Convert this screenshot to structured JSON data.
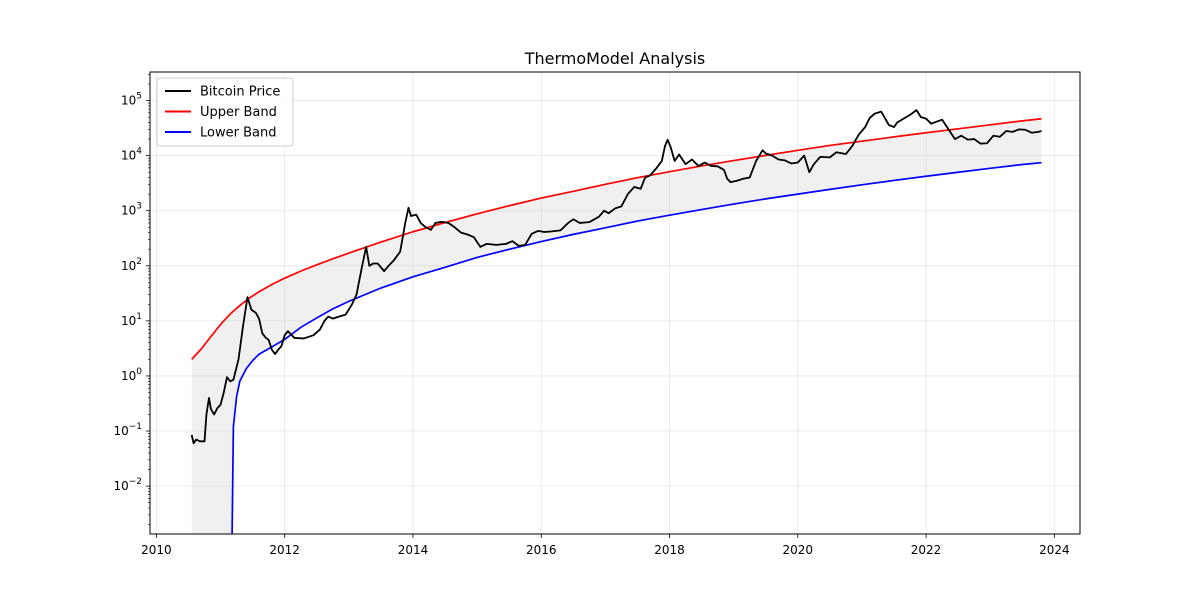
{
  "chart_data": {
    "type": "line",
    "title": "ThermoModel Analysis",
    "xlabel": "",
    "ylabel": "",
    "y_scale": "log",
    "grid": true,
    "legend_position": "top-left",
    "xlim": [
      2009.9,
      2024.4
    ],
    "ylim": [
      0.00135,
      330000
    ],
    "x_ticks": [
      2010,
      2012,
      2014,
      2016,
      2018,
      2020,
      2022,
      2024
    ],
    "x_tick_labels": [
      "2010",
      "2012",
      "2014",
      "2016",
      "2018",
      "2020",
      "2022",
      "2024"
    ],
    "y_ticks": [
      0.01,
      0.1,
      1,
      10,
      100,
      1000,
      10000,
      100000
    ],
    "y_tick_labels": [
      {
        "base": "10",
        "exp": "−2"
      },
      {
        "base": "10",
        "exp": "−1"
      },
      {
        "base": "10",
        "exp": "0"
      },
      {
        "base": "10",
        "exp": "1"
      },
      {
        "base": "10",
        "exp": "2"
      },
      {
        "base": "10",
        "exp": "3"
      },
      {
        "base": "10",
        "exp": "4"
      },
      {
        "base": "10",
        "exp": "5"
      }
    ],
    "band_fill_color": "#f0f0f0",
    "series": [
      {
        "name": "Bitcoin Price",
        "color": "#000000",
        "points": [
          [
            2010.55,
            0.085
          ],
          [
            2010.58,
            0.06
          ],
          [
            2010.62,
            0.07
          ],
          [
            2010.68,
            0.065
          ],
          [
            2010.75,
            0.065
          ],
          [
            2010.78,
            0.2
          ],
          [
            2010.82,
            0.4
          ],
          [
            2010.85,
            0.25
          ],
          [
            2010.9,
            0.2
          ],
          [
            2010.95,
            0.26
          ],
          [
            2011.0,
            0.3
          ],
          [
            2011.05,
            0.5
          ],
          [
            2011.1,
            0.95
          ],
          [
            2011.15,
            0.8
          ],
          [
            2011.2,
            0.85
          ],
          [
            2011.28,
            2
          ],
          [
            2011.35,
            8
          ],
          [
            2011.42,
            27
          ],
          [
            2011.48,
            16
          ],
          [
            2011.55,
            14
          ],
          [
            2011.6,
            11
          ],
          [
            2011.65,
            6
          ],
          [
            2011.7,
            5
          ],
          [
            2011.75,
            4.5
          ],
          [
            2011.8,
            3
          ],
          [
            2011.85,
            2.5
          ],
          [
            2011.9,
            3
          ],
          [
            2011.95,
            3.5
          ],
          [
            2012.0,
            5.5
          ],
          [
            2012.05,
            6.5
          ],
          [
            2012.15,
            4.9
          ],
          [
            2012.3,
            4.8
          ],
          [
            2012.45,
            5.5
          ],
          [
            2012.55,
            7
          ],
          [
            2012.62,
            10
          ],
          [
            2012.68,
            12
          ],
          [
            2012.75,
            11
          ],
          [
            2012.85,
            12
          ],
          [
            2012.95,
            13
          ],
          [
            2013.05,
            20
          ],
          [
            2013.12,
            30
          ],
          [
            2013.2,
            90
          ],
          [
            2013.27,
            220
          ],
          [
            2013.32,
            100
          ],
          [
            2013.38,
            110
          ],
          [
            2013.45,
            110
          ],
          [
            2013.55,
            80
          ],
          [
            2013.62,
            100
          ],
          [
            2013.7,
            125
          ],
          [
            2013.8,
            180
          ],
          [
            2013.88,
            600
          ],
          [
            2013.93,
            1130
          ],
          [
            2013.97,
            800
          ],
          [
            2014.05,
            850
          ],
          [
            2014.12,
            600
          ],
          [
            2014.2,
            500
          ],
          [
            2014.28,
            450
          ],
          [
            2014.35,
            600
          ],
          [
            2014.45,
            630
          ],
          [
            2014.55,
            600
          ],
          [
            2014.65,
            500
          ],
          [
            2014.75,
            400
          ],
          [
            2014.85,
            370
          ],
          [
            2014.95,
            330
          ],
          [
            2015.05,
            220
          ],
          [
            2015.15,
            250
          ],
          [
            2015.3,
            240
          ],
          [
            2015.45,
            250
          ],
          [
            2015.55,
            280
          ],
          [
            2015.65,
            230
          ],
          [
            2015.75,
            240
          ],
          [
            2015.85,
            380
          ],
          [
            2015.95,
            430
          ],
          [
            2016.05,
            410
          ],
          [
            2016.15,
            420
          ],
          [
            2016.3,
            440
          ],
          [
            2016.42,
            600
          ],
          [
            2016.5,
            700
          ],
          [
            2016.6,
            600
          ],
          [
            2016.75,
            620
          ],
          [
            2016.9,
            780
          ],
          [
            2016.98,
            1000
          ],
          [
            2017.05,
            900
          ],
          [
            2017.15,
            1100
          ],
          [
            2017.25,
            1200
          ],
          [
            2017.35,
            2000
          ],
          [
            2017.45,
            2700
          ],
          [
            2017.55,
            2500
          ],
          [
            2017.62,
            4000
          ],
          [
            2017.7,
            4400
          ],
          [
            2017.8,
            6000
          ],
          [
            2017.88,
            8000
          ],
          [
            2017.93,
            15000
          ],
          [
            2017.97,
            19500
          ],
          [
            2018.02,
            14000
          ],
          [
            2018.08,
            8000
          ],
          [
            2018.15,
            10500
          ],
          [
            2018.25,
            7000
          ],
          [
            2018.35,
            8500
          ],
          [
            2018.45,
            6500
          ],
          [
            2018.55,
            7500
          ],
          [
            2018.65,
            6500
          ],
          [
            2018.75,
            6400
          ],
          [
            2018.85,
            5500
          ],
          [
            2018.9,
            3800
          ],
          [
            2018.95,
            3300
          ],
          [
            2019.05,
            3500
          ],
          [
            2019.15,
            3800
          ],
          [
            2019.25,
            4000
          ],
          [
            2019.35,
            8000
          ],
          [
            2019.45,
            12500
          ],
          [
            2019.5,
            11000
          ],
          [
            2019.6,
            10000
          ],
          [
            2019.7,
            8500
          ],
          [
            2019.8,
            8200
          ],
          [
            2019.9,
            7200
          ],
          [
            2020.0,
            7500
          ],
          [
            2020.1,
            10000
          ],
          [
            2020.18,
            5000
          ],
          [
            2020.25,
            7000
          ],
          [
            2020.35,
            9500
          ],
          [
            2020.5,
            9300
          ],
          [
            2020.6,
            11500
          ],
          [
            2020.75,
            10700
          ],
          [
            2020.85,
            15000
          ],
          [
            2020.95,
            24000
          ],
          [
            2021.05,
            33000
          ],
          [
            2021.12,
            48000
          ],
          [
            2021.2,
            58000
          ],
          [
            2021.3,
            63000
          ],
          [
            2021.35,
            50000
          ],
          [
            2021.42,
            36000
          ],
          [
            2021.5,
            33000
          ],
          [
            2021.55,
            40000
          ],
          [
            2021.65,
            47000
          ],
          [
            2021.75,
            55000
          ],
          [
            2021.85,
            67000
          ],
          [
            2021.92,
            50000
          ],
          [
            2022.0,
            47000
          ],
          [
            2022.08,
            38000
          ],
          [
            2022.18,
            42000
          ],
          [
            2022.25,
            45000
          ],
          [
            2022.35,
            30000
          ],
          [
            2022.45,
            20000
          ],
          [
            2022.55,
            23000
          ],
          [
            2022.65,
            19500
          ],
          [
            2022.75,
            20000
          ],
          [
            2022.85,
            16500
          ],
          [
            2022.95,
            16800
          ],
          [
            2023.05,
            23000
          ],
          [
            2023.15,
            22000
          ],
          [
            2023.25,
            28000
          ],
          [
            2023.35,
            27000
          ],
          [
            2023.45,
            30000
          ],
          [
            2023.55,
            29500
          ],
          [
            2023.65,
            26000
          ],
          [
            2023.75,
            27000
          ],
          [
            2023.8,
            28000
          ]
        ]
      },
      {
        "name": "Upper Band",
        "color": "#ff0000",
        "points": [
          [
            2010.55,
            2.0
          ],
          [
            2010.7,
            3.1
          ],
          [
            2010.85,
            5.2
          ],
          [
            2011.0,
            8.6
          ],
          [
            2011.15,
            13.3
          ],
          [
            2011.3,
            19
          ],
          [
            2011.45,
            26
          ],
          [
            2011.6,
            33.8
          ],
          [
            2011.8,
            45.7
          ],
          [
            2012.0,
            59.6
          ],
          [
            2012.25,
            80
          ],
          [
            2012.5,
            104
          ],
          [
            2012.75,
            134
          ],
          [
            2013.0,
            170
          ],
          [
            2013.5,
            270
          ],
          [
            2014.0,
            415
          ],
          [
            2014.5,
            610
          ],
          [
            2015.0,
            880
          ],
          [
            2015.5,
            1230
          ],
          [
            2016.0,
            1700
          ],
          [
            2016.5,
            2250
          ],
          [
            2017.0,
            3020
          ],
          [
            2017.5,
            3980
          ],
          [
            2018.0,
            5110
          ],
          [
            2018.5,
            6510
          ],
          [
            2019.0,
            8130
          ],
          [
            2019.5,
            10100
          ],
          [
            2020.0,
            12500
          ],
          [
            2020.5,
            15300
          ],
          [
            2021.0,
            18300
          ],
          [
            2021.5,
            21900
          ],
          [
            2022.0,
            26000
          ],
          [
            2022.5,
            30700
          ],
          [
            2023.0,
            36300
          ],
          [
            2023.5,
            42800
          ],
          [
            2023.8,
            46800
          ]
        ]
      },
      {
        "name": "Lower Band",
        "color": "#0000ff",
        "points": [
          [
            2011.18,
            0.0013
          ],
          [
            2011.2,
            0.12
          ],
          [
            2011.25,
            0.42
          ],
          [
            2011.3,
            0.8
          ],
          [
            2011.4,
            1.35
          ],
          [
            2011.5,
            1.9
          ],
          [
            2011.6,
            2.48
          ],
          [
            2011.8,
            3.37
          ],
          [
            2012.0,
            4.6
          ],
          [
            2012.25,
            7.6
          ],
          [
            2012.5,
            11.3
          ],
          [
            2012.75,
            16.5
          ],
          [
            2013.0,
            22.6
          ],
          [
            2013.5,
            39.5
          ],
          [
            2014.0,
            63
          ],
          [
            2014.5,
            94
          ],
          [
            2015.0,
            142
          ],
          [
            2015.5,
            199
          ],
          [
            2016.0,
            275
          ],
          [
            2016.5,
            372
          ],
          [
            2017.0,
            490
          ],
          [
            2017.5,
            648
          ],
          [
            2018.0,
            830
          ],
          [
            2018.5,
            1050
          ],
          [
            2019.0,
            1320
          ],
          [
            2019.5,
            1640
          ],
          [
            2020.0,
            2000
          ],
          [
            2020.5,
            2440
          ],
          [
            2021.0,
            2950
          ],
          [
            2021.5,
            3550
          ],
          [
            2022.0,
            4220
          ],
          [
            2022.5,
            5000
          ],
          [
            2023.0,
            5880
          ],
          [
            2023.5,
            6900
          ],
          [
            2023.8,
            7450
          ]
        ]
      }
    ]
  }
}
